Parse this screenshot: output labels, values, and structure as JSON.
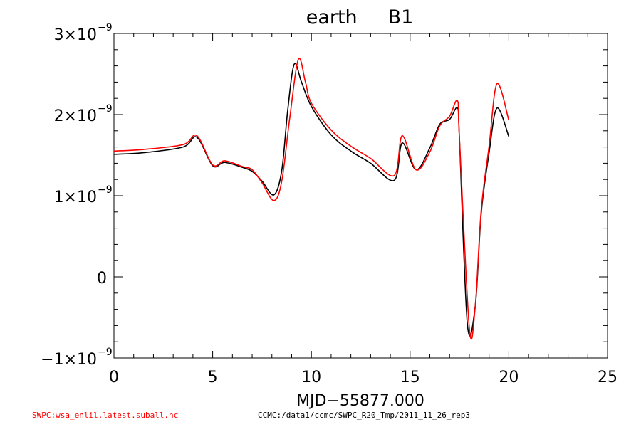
{
  "chart_data": {
    "type": "line",
    "title": "earth     B1",
    "xlabel": "MJD−55877.000",
    "ylabel": "",
    "xlim": [
      0,
      25
    ],
    "ylim": [
      -1.1e-09,
      3e-09
    ],
    "x_ticks": [
      0,
      5,
      10,
      15,
      20,
      25
    ],
    "x_tick_labels": [
      "0",
      "5",
      "10",
      "15",
      "20",
      "25"
    ],
    "y_ticks": [
      -1e-09,
      0,
      1e-09,
      2e-09,
      3e-09
    ],
    "y_tick_labels": [
      {
        "mant": "−1×10",
        "exp": "−9"
      },
      {
        "mant": "0",
        "exp": ""
      },
      {
        "mant": "1×10",
        "exp": "−9"
      },
      {
        "mant": "2×10",
        "exp": "−9"
      },
      {
        "mant": "3×10",
        "exp": "−9"
      }
    ],
    "grid": false,
    "series": [
      {
        "color": "#000000",
        "x": [
          0,
          1.5,
          3.5,
          4.2,
          5.0,
          5.6,
          6.5,
          7.0,
          7.5,
          8.1,
          8.5,
          8.8,
          9.13,
          9.5,
          10,
          11,
          12,
          13,
          14.2,
          14.6,
          15.3,
          16,
          16.5,
          17,
          17.4,
          17.5,
          17.9,
          18.3,
          18.6,
          19,
          19.4,
          20
        ],
        "y": [
          1.51e-09,
          1.53e-09,
          1.6e-09,
          1.72e-09,
          1.37e-09,
          1.41e-09,
          1.35e-09,
          1.3e-09,
          1.18e-09,
          1.01e-09,
          1.31e-09,
          2.05e-09,
          2.62e-09,
          2.4e-09,
          2.1e-09,
          1.75e-09,
          1.55e-09,
          1.4e-09,
          1.19e-09,
          1.65e-09,
          1.32e-09,
          1.59e-09,
          1.88e-09,
          1.94e-09,
          2.08e-09,
          1.7e-09,
          -5.8e-10,
          -3.6e-10,
          7.8e-10,
          1.53e-09,
          2.08e-09,
          1.73e-09
        ]
      },
      {
        "color": "#ff0000",
        "x": [
          0,
          1.5,
          3.5,
          4.2,
          5.0,
          5.6,
          6.5,
          7.0,
          7.5,
          8.1,
          8.5,
          8.9,
          9.34,
          9.7,
          10,
          11,
          12,
          13,
          14.2,
          14.6,
          15.3,
          16,
          16.5,
          17,
          17.4,
          17.5,
          18.0,
          18.3,
          18.6,
          19,
          19.4,
          20
        ],
        "y": [
          1.55e-09,
          1.57e-09,
          1.63e-09,
          1.74e-09,
          1.38e-09,
          1.43e-09,
          1.36e-09,
          1.32e-09,
          1.16e-09,
          9.4e-10,
          1.18e-09,
          1.95e-09,
          2.68e-09,
          2.4e-09,
          2.14e-09,
          1.81e-09,
          1.61e-09,
          1.46e-09,
          1.25e-09,
          1.74e-09,
          1.32e-09,
          1.54e-09,
          1.86e-09,
          1.98e-09,
          2.17e-09,
          1.7e-09,
          -6.3e-10,
          -3.6e-10,
          8.2e-10,
          1.61e-09,
          2.38e-09,
          1.93e-09
        ]
      }
    ]
  },
  "footer": {
    "left": "SWPC:wsa_enlil.latest.suball.nc",
    "left_color": "#ff0000",
    "right": "CCMC:/data1/ccmc/SWPC_R20_Tmp/2011_11_26_rep3"
  }
}
